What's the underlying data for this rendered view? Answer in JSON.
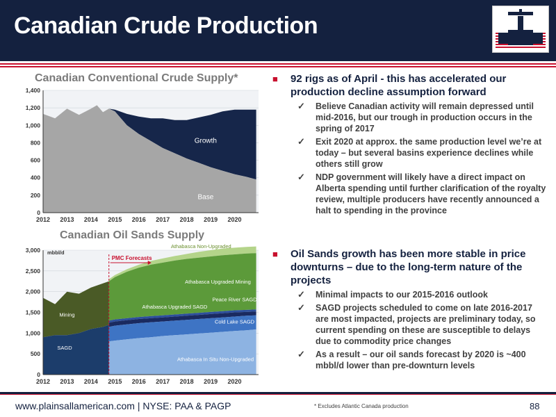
{
  "header": {
    "title": "Canadian Crude Production"
  },
  "colors": {
    "navy": "#14213f",
    "red": "#c8102e"
  },
  "chart_data": [
    {
      "type": "area",
      "title": "Canadian Conventional Crude Supply*",
      "xlabel": "",
      "ylabel": "",
      "x": [
        2012,
        2012.5,
        2013,
        2013.5,
        2014,
        2014.25,
        2014.5,
        2014.75,
        2015,
        2015.5,
        2016,
        2016.5,
        2017,
        2017.5,
        2018,
        2018.5,
        2019,
        2019.5,
        2020,
        2020.5,
        2020.9
      ],
      "xlim": [
        2012,
        2021
      ],
      "ylim": [
        0,
        1400
      ],
      "yticks": [
        0,
        200,
        400,
        600,
        800,
        1000,
        1200,
        1400
      ],
      "ytick_labels": [
        "0",
        "200",
        "400",
        "600",
        "800",
        "1,000",
        "1,200",
        "1,400"
      ],
      "xticks": [
        2012,
        2013,
        2014,
        2015,
        2016,
        2017,
        2018,
        2019,
        2020
      ],
      "series": [
        {
          "name": "Base",
          "values": [
            1130,
            1080,
            1190,
            1120,
            1190,
            1230,
            1150,
            1190,
            1160,
            1000,
            900,
            820,
            740,
            680,
            620,
            570,
            520,
            480,
            440,
            410,
            380
          ]
        },
        {
          "name": "Growth",
          "values": [
            1130,
            1080,
            1190,
            1120,
            1190,
            1230,
            1150,
            1190,
            1180,
            1130,
            1100,
            1080,
            1080,
            1060,
            1060,
            1090,
            1120,
            1160,
            1180,
            1180,
            1180
          ]
        }
      ],
      "series_colors": [
        "#a6a6a6",
        "#16264a"
      ]
    },
    {
      "type": "area",
      "title": "Canadian Oil Sands Supply",
      "ylabel": "mbbl/d",
      "forecast_label": "PMC Forecasts",
      "forecast_start": 2014.75,
      "x": [
        2012,
        2012.5,
        2013,
        2013.5,
        2014,
        2014.5,
        2014.75,
        2015,
        2015.5,
        2016,
        2016.5,
        2017,
        2017.5,
        2018,
        2018.5,
        2019,
        2019.5,
        2020,
        2020.5,
        2020.9
      ],
      "xlim": [
        2012,
        2021
      ],
      "ylim": [
        0,
        3000
      ],
      "yticks": [
        0,
        500,
        1000,
        1500,
        2000,
        2500,
        3000
      ],
      "ytick_labels": [
        "0",
        "500",
        "1,000",
        "1,500",
        "2,000",
        "2,500",
        "3,000"
      ],
      "xticks": [
        2012,
        2013,
        2014,
        2015,
        2016,
        2017,
        2018,
        2019,
        2020
      ],
      "historical": [
        {
          "name": "SAGD",
          "values": [
            900,
            950,
            950,
            1000,
            1100,
            1150,
            1200
          ]
        },
        {
          "name": "Mining",
          "values": [
            1850,
            1700,
            2000,
            1950,
            2100,
            2200,
            2250
          ]
        }
      ],
      "forecast": [
        {
          "name": "Athabasca In Situ Non-Upgraded",
          "values": [
            null,
            null,
            null,
            null,
            null,
            null,
            800,
            820,
            850,
            880,
            900,
            930,
            950,
            970,
            990,
            1010,
            1030,
            1050,
            1070,
            1090
          ]
        },
        {
          "name": "Cold Lake SAGD",
          "values": [
            null,
            null,
            null,
            null,
            null,
            null,
            1150,
            1180,
            1210,
            1240,
            1260,
            1280,
            1300,
            1320,
            1340,
            1360,
            1380,
            1400,
            1420,
            1430
          ]
        },
        {
          "name": "Athabasca Upgraded SAGD",
          "values": [
            null,
            null,
            null,
            null,
            null,
            null,
            1250,
            1280,
            1310,
            1340,
            1360,
            1380,
            1400,
            1420,
            1440,
            1460,
            1480,
            1500,
            1510,
            1520
          ]
        },
        {
          "name": "Peace River SAGD",
          "values": [
            null,
            null,
            null,
            null,
            null,
            null,
            1300,
            1330,
            1360,
            1390,
            1410,
            1430,
            1450,
            1470,
            1490,
            1510,
            1530,
            1550,
            1560,
            1570
          ]
        },
        {
          "name": "Athabasca Upgraded Mining",
          "values": [
            null,
            null,
            null,
            null,
            null,
            null,
            2250,
            2350,
            2480,
            2580,
            2650,
            2700,
            2750,
            2790,
            2820,
            2850,
            2880,
            2900,
            2920,
            2930
          ]
        },
        {
          "name": "Athabasca Non-Upgraded",
          "values": [
            null,
            null,
            null,
            null,
            null,
            null,
            2300,
            2400,
            2540,
            2650,
            2740,
            2800,
            2860,
            2910,
            2960,
            3000,
            3040,
            3060,
            3080,
            3090
          ]
        }
      ],
      "series_colors": {
        "SAGD": "#1c3d6b",
        "Mining": "#4a5a26",
        "Athabasca In Situ Non-Upgraded": "#8db3e2",
        "Cold Lake SAGD": "#3e74c4",
        "Athabasca Upgraded SAGD": "#1a2a60",
        "Peace River SAGD": "#2d4f9c",
        "Athabasca Upgraded Mining": "#5c9a3a",
        "Athabasca Non-Upgraded": "#b4d48a"
      }
    }
  ],
  "bullets": [
    {
      "head": "92 rigs as of April - this has accelerated our production decline assumption forward",
      "subs": [
        "Believe Canadian activity will remain depressed until mid-2016, but our trough in production occurs in the spring of 2017",
        "Exit 2020 at approx. the same production level we’re at today – but several basins experience declines while others still grow",
        "NDP government will likely have a direct impact on Alberta spending until further clarification of the royalty review, multiple producers have recently announced a halt to spending in the province"
      ]
    },
    {
      "head": "Oil Sands growth has been more stable in price downturns – due to the long-term nature of the projects",
      "subs": [
        "Minimal impacts to our 2015-2016 outlook",
        "SAGD projects scheduled to come on late 2016-2017 are most impacted, projects are preliminary today, so current spending on these are susceptible to delays due to commodity price changes",
        "As a result – our oil sands forecast by 2020 is ~400 mbbl/d lower than pre-downturn levels"
      ]
    }
  ],
  "footer": {
    "url": "www.plainsallamerican.com | NYSE: PAA & PAGP",
    "note": "* Excludes Atlantic Canada production",
    "page": "88"
  }
}
